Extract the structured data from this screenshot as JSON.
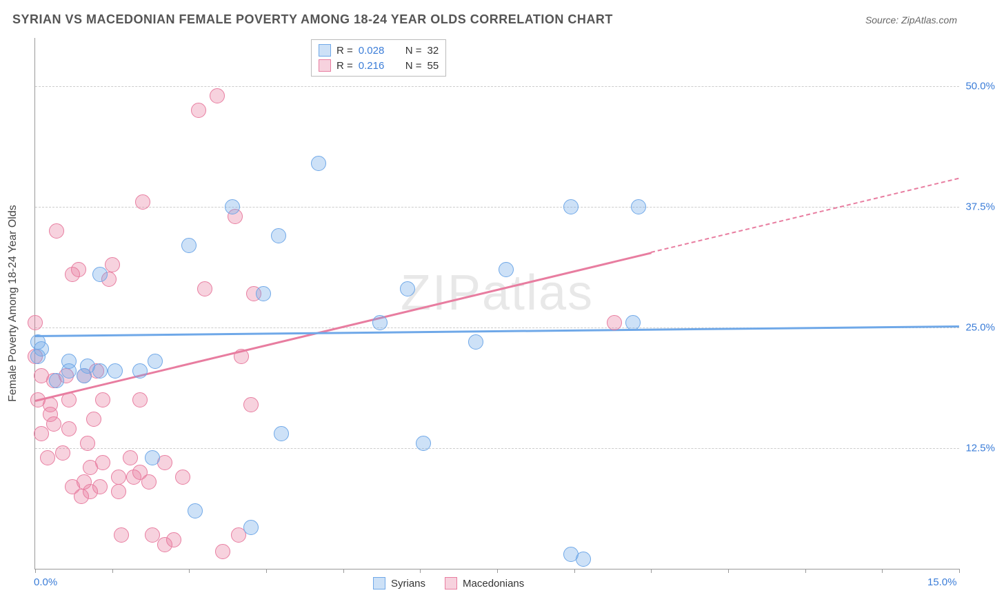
{
  "header": {
    "title": "SYRIAN VS MACEDONIAN FEMALE POVERTY AMONG 18-24 YEAR OLDS CORRELATION CHART",
    "source": "Source: ZipAtlas.com"
  },
  "chart": {
    "type": "scatter",
    "ylabel": "Female Poverty Among 18-24 Year Olds",
    "watermark": "ZIPatlas",
    "xlim": [
      0,
      15
    ],
    "ylim": [
      0,
      55
    ],
    "background_color": "#ffffff",
    "grid_color": "#cccccc",
    "grid_dashed": true,
    "axis_label_color": "#3b7dd8",
    "axis_label_fontsize": 15,
    "ylabel_fontsize": 16,
    "y_gridlines": [
      12.5,
      25.0,
      37.5,
      50.0
    ],
    "y_tick_labels": [
      "12.5%",
      "25.0%",
      "37.5%",
      "50.0%"
    ],
    "x_ticks": [
      0,
      1.25,
      2.5,
      3.75,
      5,
      6.25,
      7.5,
      8.75,
      10,
      11.25,
      12.5,
      13.75,
      15
    ],
    "x_tick_labels": {
      "0": "0.0%",
      "15": "15.0%"
    },
    "marker_radius": 11,
    "marker_fill_opacity": 0.35,
    "marker_stroke_width": 1.5,
    "series": {
      "syrians": {
        "label": "Syrians",
        "color": "#6fa8e8",
        "fill": "rgba(111,168,232,0.35)",
        "R": "0.028",
        "N": "32",
        "points": [
          [
            0.05,
            22.0
          ],
          [
            0.05,
            23.5
          ],
          [
            0.35,
            19.5
          ],
          [
            0.55,
            20.5
          ],
          [
            0.55,
            21.5
          ],
          [
            0.8,
            20.0
          ],
          [
            0.85,
            21.0
          ],
          [
            1.05,
            20.5
          ],
          [
            1.05,
            30.5
          ],
          [
            1.3,
            20.5
          ],
          [
            1.7,
            20.5
          ],
          [
            1.9,
            11.5
          ],
          [
            1.95,
            21.5
          ],
          [
            2.5,
            33.5
          ],
          [
            2.6,
            6.0
          ],
          [
            3.2,
            37.5
          ],
          [
            3.5,
            4.3
          ],
          [
            3.7,
            28.5
          ],
          [
            3.95,
            34.5
          ],
          [
            4.0,
            14.0
          ],
          [
            4.6,
            42.0
          ],
          [
            5.6,
            25.5
          ],
          [
            6.05,
            29.0
          ],
          [
            6.3,
            13.0
          ],
          [
            7.15,
            23.5
          ],
          [
            7.65,
            31.0
          ],
          [
            8.7,
            37.5
          ],
          [
            8.7,
            1.5
          ],
          [
            8.9,
            1.0
          ],
          [
            9.8,
            37.5
          ],
          [
            9.7,
            25.5
          ],
          [
            0.1,
            22.8
          ]
        ],
        "trend": {
          "y_at_x0": 24.2,
          "y_at_xmax": 25.2,
          "extrapolate_from": 15
        }
      },
      "macedonians": {
        "label": "Macedonians",
        "color": "#e87da0",
        "fill": "rgba(232,125,160,0.35)",
        "R": "0.216",
        "N": "55",
        "points": [
          [
            0.0,
            25.5
          ],
          [
            0.0,
            22.0
          ],
          [
            0.05,
            17.5
          ],
          [
            0.1,
            14.0
          ],
          [
            0.1,
            20.0
          ],
          [
            0.2,
            11.5
          ],
          [
            0.25,
            16.0
          ],
          [
            0.25,
            17.0
          ],
          [
            0.3,
            15.0
          ],
          [
            0.3,
            19.5
          ],
          [
            0.35,
            35.0
          ],
          [
            0.45,
            12.0
          ],
          [
            0.5,
            20.0
          ],
          [
            0.55,
            17.5
          ],
          [
            0.55,
            14.5
          ],
          [
            0.6,
            8.5
          ],
          [
            0.6,
            30.5
          ],
          [
            0.7,
            31.0
          ],
          [
            0.75,
            7.5
          ],
          [
            0.8,
            9.0
          ],
          [
            0.8,
            20.0
          ],
          [
            0.85,
            13.0
          ],
          [
            0.9,
            8.0
          ],
          [
            0.9,
            10.5
          ],
          [
            0.95,
            15.5
          ],
          [
            1.0,
            20.5
          ],
          [
            1.05,
            8.5
          ],
          [
            1.1,
            11.0
          ],
          [
            1.1,
            17.5
          ],
          [
            1.2,
            30.0
          ],
          [
            1.25,
            31.5
          ],
          [
            1.35,
            8.0
          ],
          [
            1.35,
            9.5
          ],
          [
            1.4,
            3.5
          ],
          [
            1.55,
            11.5
          ],
          [
            1.6,
            9.5
          ],
          [
            1.7,
            17.5
          ],
          [
            1.7,
            10.0
          ],
          [
            1.75,
            38.0
          ],
          [
            1.85,
            9.0
          ],
          [
            1.9,
            3.5
          ],
          [
            2.1,
            2.5
          ],
          [
            2.1,
            11.0
          ],
          [
            2.25,
            3.0
          ],
          [
            2.4,
            9.5
          ],
          [
            2.65,
            47.5
          ],
          [
            2.75,
            29.0
          ],
          [
            2.95,
            49.0
          ],
          [
            3.05,
            1.8
          ],
          [
            3.25,
            36.5
          ],
          [
            3.3,
            3.5
          ],
          [
            3.35,
            22.0
          ],
          [
            3.5,
            17.0
          ],
          [
            3.55,
            28.5
          ],
          [
            9.4,
            25.5
          ]
        ],
        "trend": {
          "y_at_x0": 17.5,
          "y_at_xmax": 40.5,
          "extrapolate_from": 10
        }
      }
    },
    "legend_top": {
      "R_label": "R =",
      "N_label": "N ="
    }
  }
}
